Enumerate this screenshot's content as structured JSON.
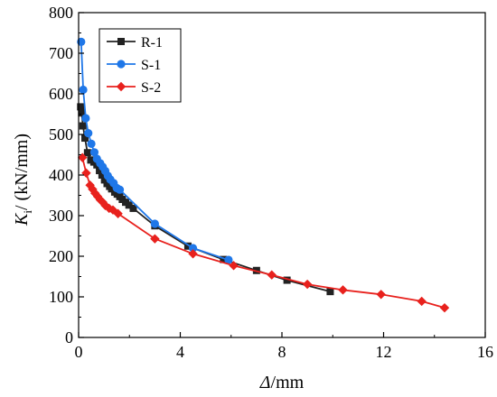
{
  "chart_data": {
    "type": "line",
    "xlabel": {
      "italic": "Δ",
      "rest": "/mm"
    },
    "ylabel": {
      "italic": "K",
      "sub": "i",
      "rest": "/ (kN/mm)"
    },
    "xlim": [
      0,
      16
    ],
    "ylim": [
      0,
      800
    ],
    "xticks": [
      "0",
      "4",
      "8",
      "12",
      "16"
    ],
    "yticks": [
      "0",
      "100",
      "200",
      "300",
      "400",
      "500",
      "600",
      "700",
      "800"
    ],
    "grid": false,
    "legend_position": "top-left",
    "series": [
      {
        "name": "R-1",
        "color": "#222222",
        "marker": "square",
        "points": [
          [
            0.08,
            568
          ],
          [
            0.12,
            553
          ],
          [
            0.17,
            521
          ],
          [
            0.25,
            491
          ],
          [
            0.35,
            455
          ],
          [
            0.48,
            437
          ],
          [
            0.6,
            432
          ],
          [
            0.72,
            425
          ],
          [
            0.82,
            411
          ],
          [
            0.92,
            400
          ],
          [
            1.02,
            388
          ],
          [
            1.12,
            379
          ],
          [
            1.22,
            372
          ],
          [
            1.3,
            366
          ],
          [
            1.42,
            358
          ],
          [
            1.52,
            353
          ],
          [
            1.62,
            347
          ],
          [
            1.72,
            340
          ],
          [
            1.85,
            333
          ],
          [
            1.98,
            326
          ],
          [
            2.15,
            318
          ],
          [
            3.0,
            275
          ],
          [
            4.3,
            225
          ],
          [
            5.7,
            192
          ],
          [
            7.0,
            165
          ],
          [
            8.2,
            141
          ],
          [
            9.9,
            113
          ]
        ]
      },
      {
        "name": "S-1",
        "color": "#1f77e8",
        "marker": "circle",
        "points": [
          [
            0.1,
            728
          ],
          [
            0.18,
            610
          ],
          [
            0.28,
            540
          ],
          [
            0.38,
            503
          ],
          [
            0.5,
            477
          ],
          [
            0.62,
            456
          ],
          [
            0.72,
            440
          ],
          [
            0.85,
            429
          ],
          [
            0.95,
            420
          ],
          [
            1.05,
            410
          ],
          [
            1.15,
            398
          ],
          [
            1.25,
            389
          ],
          [
            1.38,
            380
          ],
          [
            1.5,
            368
          ],
          [
            1.62,
            364
          ],
          [
            3.0,
            280
          ],
          [
            4.5,
            220
          ],
          [
            5.9,
            191
          ]
        ]
      },
      {
        "name": "S-2",
        "color": "#e8211d",
        "marker": "diamond",
        "points": [
          [
            0.15,
            443
          ],
          [
            0.3,
            405
          ],
          [
            0.45,
            375
          ],
          [
            0.55,
            365
          ],
          [
            0.65,
            355
          ],
          [
            0.75,
            347
          ],
          [
            0.85,
            339
          ],
          [
            0.95,
            333
          ],
          [
            1.05,
            325
          ],
          [
            1.2,
            318
          ],
          [
            1.35,
            314
          ],
          [
            1.55,
            305
          ],
          [
            3.0,
            243
          ],
          [
            4.5,
            206
          ],
          [
            6.1,
            177
          ],
          [
            7.6,
            154
          ],
          [
            9.0,
            131
          ],
          [
            10.4,
            117
          ],
          [
            11.9,
            106
          ],
          [
            13.5,
            89
          ],
          [
            14.4,
            73
          ]
        ]
      }
    ]
  }
}
